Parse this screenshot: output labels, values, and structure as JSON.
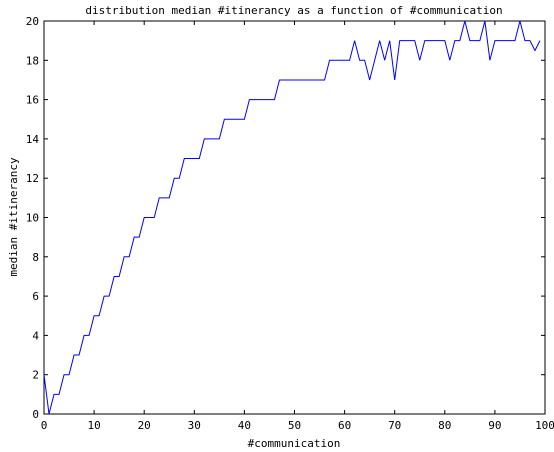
{
  "chart_data": {
    "type": "line",
    "title": "distribution median #itinerancy as a function of #communication",
    "xlabel": "#communication",
    "ylabel": "median #itinerancy",
    "xlim": [
      0,
      100
    ],
    "ylim": [
      0,
      20
    ],
    "xticks": [
      "0",
      "10",
      "20",
      "30",
      "40",
      "50",
      "60",
      "70",
      "80",
      "90",
      "100"
    ],
    "yticks": [
      "0",
      "2",
      "4",
      "6",
      "8",
      "10",
      "12",
      "14",
      "16",
      "18",
      "20"
    ],
    "grid": false,
    "legend": "none",
    "series": [
      {
        "color": "#0000ff",
        "x": [
          0,
          1,
          2,
          3,
          4,
          5,
          6,
          7,
          8,
          9,
          10,
          11,
          12,
          13,
          14,
          15,
          16,
          17,
          18,
          19,
          20,
          21,
          22,
          23,
          24,
          25,
          26,
          27,
          28,
          29,
          30,
          31,
          32,
          33,
          34,
          35,
          36,
          37,
          38,
          39,
          40,
          41,
          42,
          43,
          44,
          45,
          46,
          47,
          48,
          49,
          50,
          51,
          52,
          53,
          54,
          55,
          56,
          57,
          58,
          59,
          60,
          61,
          62,
          63,
          64,
          65,
          66,
          67,
          68,
          69,
          70,
          71,
          72,
          73,
          74,
          75,
          76,
          77,
          78,
          79,
          80,
          81,
          82,
          83,
          84,
          85,
          86,
          87,
          88,
          89,
          90,
          91,
          92,
          93,
          94,
          95,
          96,
          97,
          98,
          99
        ],
        "y": [
          2,
          0,
          1,
          1,
          2,
          2,
          3,
          3,
          4,
          4,
          5,
          5,
          6,
          6,
          7,
          7,
          8,
          8,
          9,
          9,
          10,
          10,
          10,
          11,
          11,
          11,
          12,
          12,
          13,
          13,
          13,
          13,
          14,
          14,
          14,
          14,
          15,
          15,
          15,
          15,
          15,
          16,
          16,
          16,
          16,
          16,
          16,
          17,
          17,
          17,
          17,
          17,
          17,
          17,
          17,
          17,
          17,
          18,
          18,
          18,
          18,
          18,
          19,
          18,
          18,
          17,
          18,
          19,
          18,
          19,
          17,
          19,
          19,
          19,
          19,
          18,
          19,
          19,
          19,
          19,
          19,
          18,
          19,
          19,
          20,
          19,
          19,
          19,
          20,
          18,
          19,
          19,
          19,
          19,
          19,
          20,
          19,
          19,
          18.5,
          19
        ]
      }
    ]
  }
}
